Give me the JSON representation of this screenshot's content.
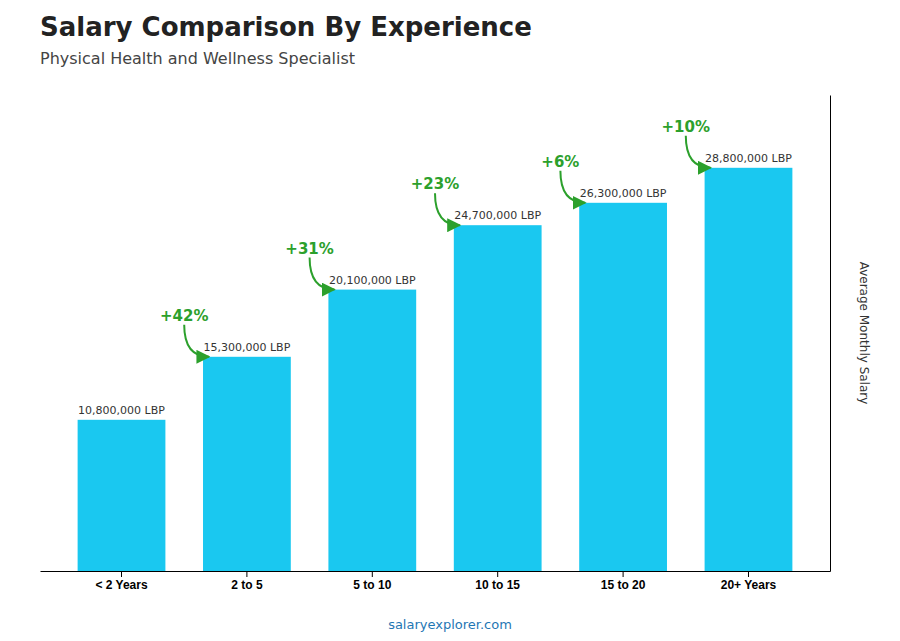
{
  "chart_data": {
    "type": "bar",
    "title": "Salary Comparison By Experience",
    "subtitle": "Physical Health and Wellness Specialist",
    "categories": [
      "< 2 Years",
      "2 to 5",
      "5 to 10",
      "10 to 15",
      "15 to 20",
      "20+ Years"
    ],
    "values": [
      10800000,
      15300000,
      20100000,
      24700000,
      26300000,
      28800000
    ],
    "value_labels": [
      "10,800,000 LBP",
      "15,300,000 LBP",
      "20,100,000 LBP",
      "24,700,000 LBP",
      "26,300,000 LBP",
      "28,800,000 LBP"
    ],
    "data_labels": true,
    "annotations": [
      null,
      "+42%",
      "+31%",
      "+23%",
      "+6%",
      "+10%"
    ],
    "y_label": "Average Monthly Salary",
    "source": "salaryexplorer.com",
    "color": "#1ac8f0",
    "ylim": [
      0,
      34000000
    ],
    "yticks": [],
    "grid": false,
    "tick_labels": "x"
  }
}
